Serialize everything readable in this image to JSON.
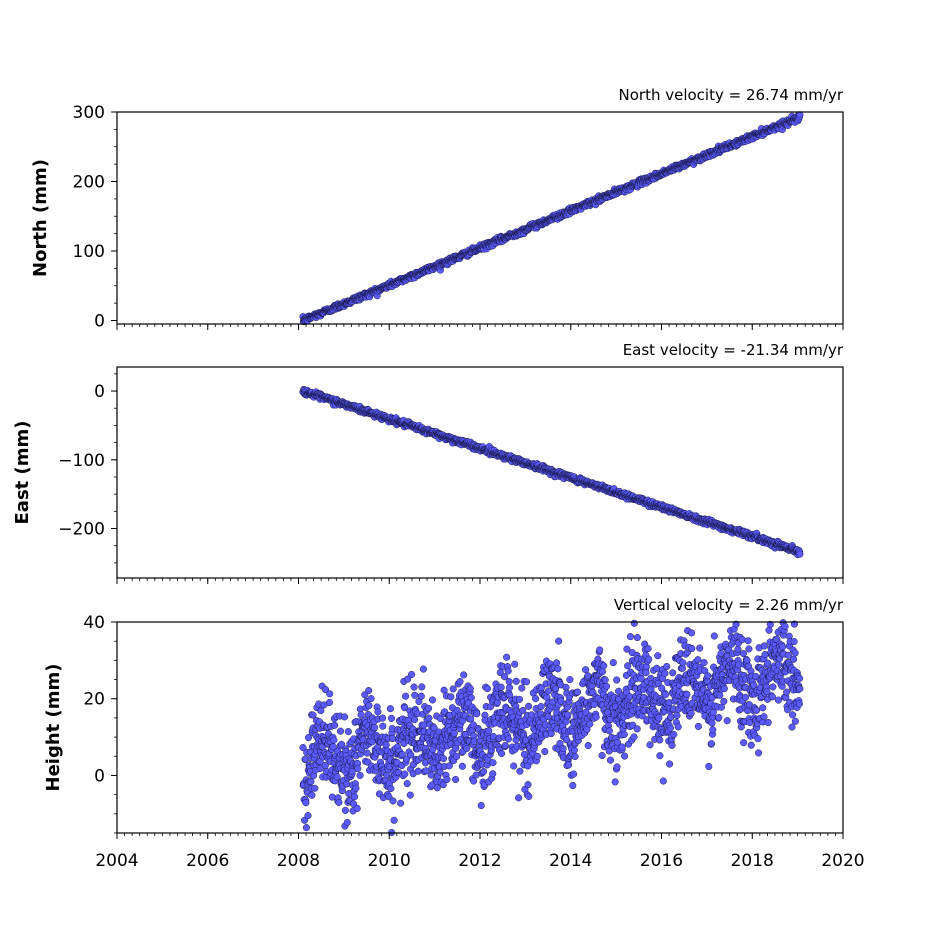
{
  "chart_data": [
    {
      "type": "scatter",
      "ylabel": "North (mm)",
      "annotation": "North velocity = 26.74 mm/yr",
      "xlim": [
        2004,
        2020
      ],
      "ylim": [
        -5,
        300
      ],
      "yticks": [
        0,
        100,
        200,
        300
      ],
      "x_range": [
        2008.1,
        2019.05
      ],
      "trend": {
        "start": 0,
        "slope": 26.74,
        "noise": 2
      },
      "color": "#5a5aff"
    },
    {
      "type": "scatter",
      "ylabel": "East (mm)",
      "annotation": "East velocity = -21.34 mm/yr",
      "xlim": [
        2004,
        2020
      ],
      "ylim": [
        -272,
        35
      ],
      "yticks": [
        0,
        -100,
        -200
      ],
      "ytick_labels": [
        "0",
        "−100",
        "−200"
      ],
      "x_range": [
        2008.1,
        2019.05
      ],
      "trend": {
        "start": 0,
        "slope": -21.34,
        "noise": 2
      },
      "color": "#5a5aff"
    },
    {
      "type": "scatter",
      "ylabel": "Height (mm)",
      "annotation": "Vertical velocity = 2.26 mm/yr",
      "xlim": [
        2004,
        2020
      ],
      "ylim": [
        -15,
        40
      ],
      "yticks": [
        0,
        20,
        40
      ],
      "x_range": [
        2008.1,
        2019.05
      ],
      "trend": {
        "start": 3,
        "slope": 2.26,
        "noise": 6,
        "seasonal_amplitude": 5
      },
      "color": "#5a5aff"
    }
  ],
  "xticks": [
    2004,
    2006,
    2008,
    2010,
    2012,
    2014,
    2016,
    2018,
    2020
  ]
}
